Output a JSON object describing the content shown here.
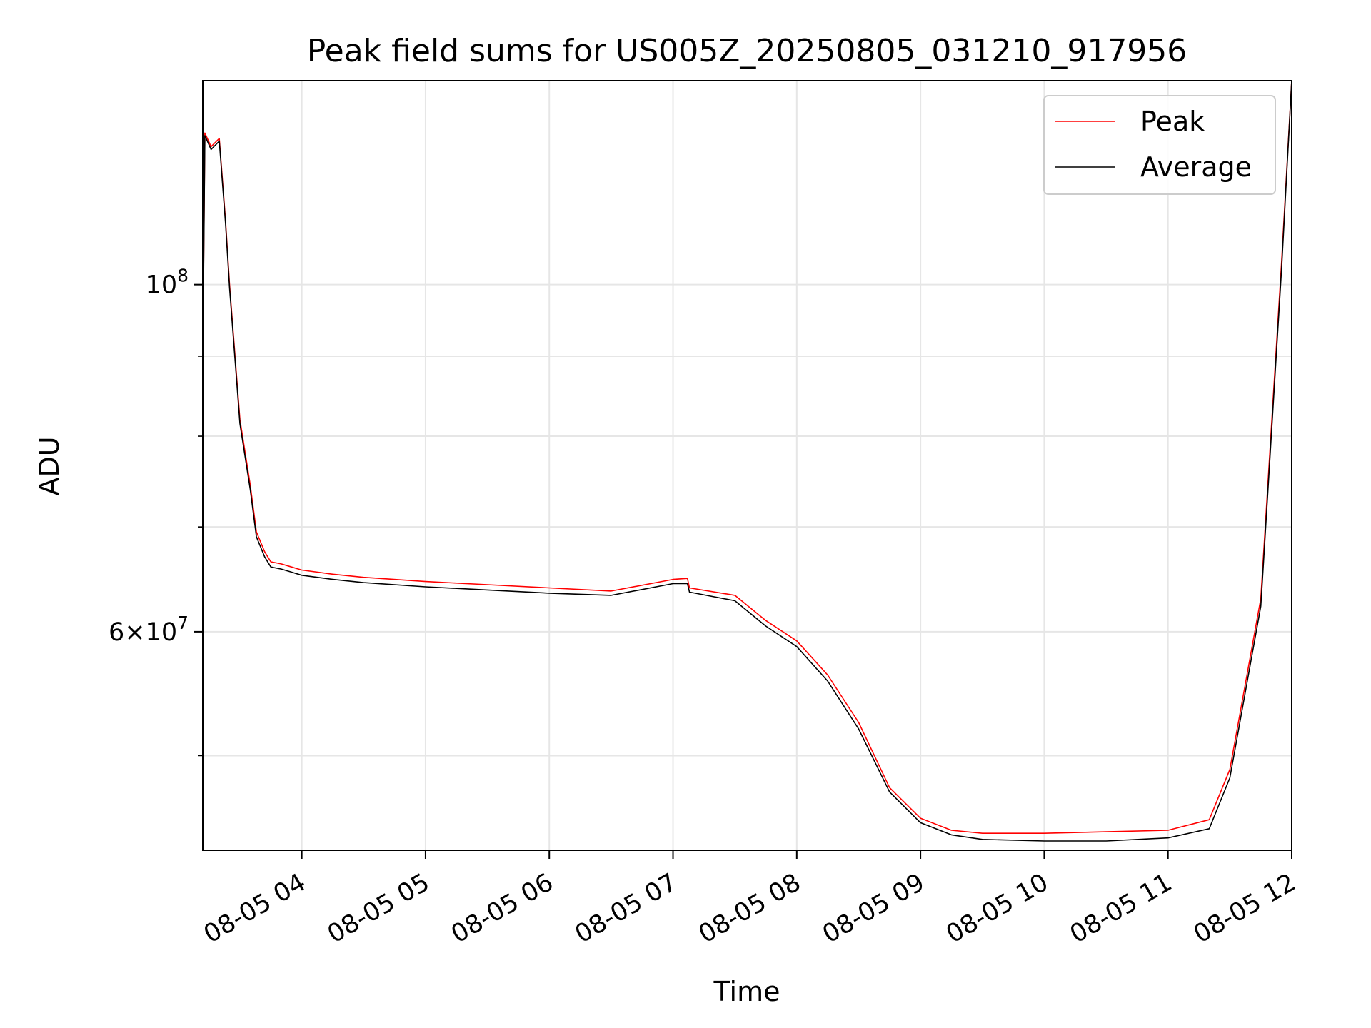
{
  "chart_data": {
    "type": "line",
    "title": "Peak field sums for US005Z_20250805_031210_917956",
    "xlabel": "Time",
    "ylabel": "ADU",
    "x_range": [
      "2025-08-05 03:12",
      "2025-08-05 12:00"
    ],
    "y_scale": "log",
    "y_range": [
      43500000,
      135000000
    ],
    "grid": true,
    "legend": "upper right",
    "x_ticks": [
      "08-05 04",
      "08-05 05",
      "08-05 06",
      "08-05 07",
      "08-05 08",
      "08-05 09",
      "08-05 10",
      "08-05 11",
      "08-05 12"
    ],
    "y_ticks_labeled": [
      {
        "value": 100000000,
        "label_base": "10",
        "label_exp": "8"
      },
      {
        "value": 60000000,
        "label_base": "6×10",
        "label_exp": "7"
      }
    ],
    "y_minor_ticks": [
      50000000,
      70000000,
      80000000,
      90000000
    ],
    "series": [
      {
        "name": "Peak",
        "color": "#ff0000",
        "time": [
          "2025-08-05 03:12",
          "2025-08-05 03:13",
          "2025-08-05 03:16",
          "2025-08-05 03:20",
          "2025-08-05 03:23",
          "2025-08-05 03:25",
          "2025-08-05 03:30",
          "2025-08-05 03:35",
          "2025-08-05 03:38",
          "2025-08-05 03:42",
          "2025-08-05 03:45",
          "2025-08-05 03:50",
          "2025-08-05 03:55",
          "2025-08-05 04:00",
          "2025-08-05 04:15",
          "2025-08-05 04:30",
          "2025-08-05 05:00",
          "2025-08-05 05:30",
          "2025-08-05 06:00",
          "2025-08-05 06:30",
          "2025-08-05 07:00",
          "2025-08-05 07:07",
          "2025-08-05 07:08",
          "2025-08-05 07:30",
          "2025-08-05 07:45",
          "2025-08-05 08:00",
          "2025-08-05 08:15",
          "2025-08-05 08:30",
          "2025-08-05 08:45",
          "2025-08-05 09:00",
          "2025-08-05 09:15",
          "2025-08-05 09:30",
          "2025-08-05 10:00",
          "2025-08-05 10:30",
          "2025-08-05 11:00",
          "2025-08-05 11:20",
          "2025-08-05 11:30",
          "2025-08-05 11:45",
          "2025-08-05 11:55",
          "2025-08-05 12:00"
        ],
        "values": [
          90000000,
          125000000,
          122500000,
          124000000,
          110000000,
          100000000,
          82000000,
          74500000,
          69500000,
          67500000,
          66500000,
          66300000,
          66000000,
          65700000,
          65300000,
          65000000,
          64600000,
          64300000,
          64000000,
          63700000,
          64800000,
          64900000,
          64000000,
          63300000,
          61000000,
          59200000,
          56300000,
          52500000,
          47700000,
          45600000,
          44800000,
          44600000,
          44600000,
          44700000,
          44800000,
          45500000,
          49000000,
          63000000,
          103000000,
          135000000
        ]
      },
      {
        "name": "Average",
        "color": "#000000",
        "time": [
          "2025-08-05 03:12",
          "2025-08-05 03:13",
          "2025-08-05 03:16",
          "2025-08-05 03:20",
          "2025-08-05 03:23",
          "2025-08-05 03:25",
          "2025-08-05 03:30",
          "2025-08-05 03:35",
          "2025-08-05 03:38",
          "2025-08-05 03:42",
          "2025-08-05 03:45",
          "2025-08-05 03:50",
          "2025-08-05 03:55",
          "2025-08-05 04:00",
          "2025-08-05 04:15",
          "2025-08-05 04:30",
          "2025-08-05 05:00",
          "2025-08-05 05:30",
          "2025-08-05 06:00",
          "2025-08-05 06:30",
          "2025-08-05 07:00",
          "2025-08-05 07:07",
          "2025-08-05 07:08",
          "2025-08-05 07:30",
          "2025-08-05 07:45",
          "2025-08-05 08:00",
          "2025-08-05 08:15",
          "2025-08-05 08:30",
          "2025-08-05 08:45",
          "2025-08-05 09:00",
          "2025-08-05 09:15",
          "2025-08-05 09:30",
          "2025-08-05 10:00",
          "2025-08-05 10:30",
          "2025-08-05 11:00",
          "2025-08-05 11:20",
          "2025-08-05 11:30",
          "2025-08-05 11:45",
          "2025-08-05 11:55",
          "2025-08-05 12:00"
        ],
        "values": [
          89000000,
          124500000,
          122000000,
          123500000,
          109500000,
          99500000,
          81500000,
          74000000,
          69000000,
          67000000,
          66000000,
          65800000,
          65500000,
          65200000,
          64800000,
          64500000,
          64100000,
          63800000,
          63500000,
          63300000,
          64400000,
          64400000,
          63600000,
          62800000,
          60500000,
          58700000,
          55800000,
          52000000,
          47400000,
          45300000,
          44500000,
          44200000,
          44100000,
          44100000,
          44300000,
          44900000,
          48400000,
          62300000,
          102000000,
          135000000
        ]
      }
    ]
  }
}
